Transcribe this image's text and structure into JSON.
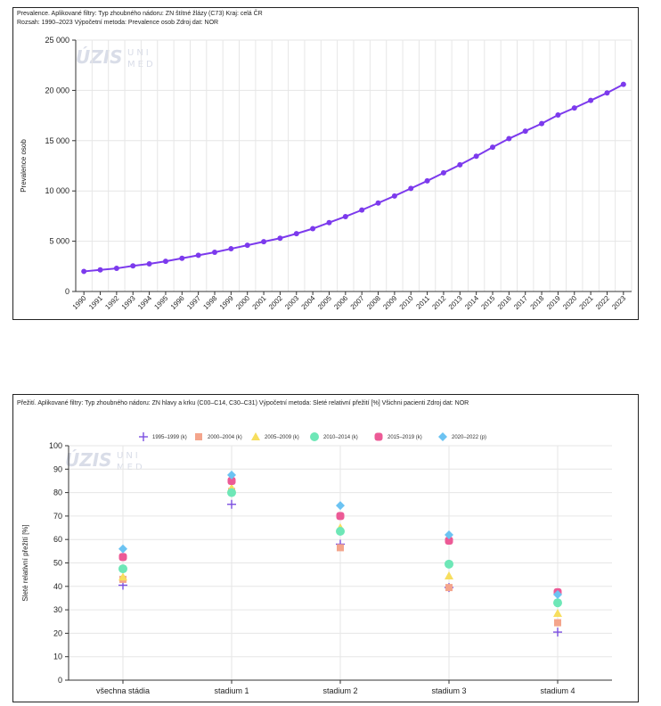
{
  "charts": [
    {
      "caption_line1": "Prevalence. Aplikované filtry: Typ zhoubného nádoru: ZN štítné žlázy (C73) Kraj: celá ČR",
      "caption_line2": "Rozsah: 1990–2023 Výpočetní metoda: Prevalence osob Zdroj dat: NOR",
      "watermark": [
        "ÚZIS",
        "UNI",
        "MED"
      ]
    },
    {
      "caption_line1": "Přežití. Aplikované filtry: Typ zhoubného nádoru: ZN hlavy a krku (C00–C14, C30–C31) Výpočetní metoda: Sleté relativní přežití [%] Všichni pacienti Zdroj dat: NOR",
      "watermark": [
        "ÚZIS",
        "UNI",
        "MED"
      ]
    }
  ],
  "chart_data": [
    {
      "type": "line",
      "ylabel": "Prevalence osob",
      "xlabel": "",
      "ylim": [
        0,
        25000
      ],
      "yticks": [
        0,
        5000,
        10000,
        15000,
        20000,
        25000
      ],
      "ytick_labels": [
        "0",
        "5 000",
        "10 000",
        "15 000",
        "20 000",
        "25 000"
      ],
      "grid": true,
      "color": "#7c3aed",
      "x": [
        "1990",
        "1991",
        "1992",
        "1993",
        "1994",
        "1995",
        "1996",
        "1997",
        "1998",
        "1999",
        "2000",
        "2001",
        "2002",
        "2003",
        "2004",
        "2005",
        "2006",
        "2007",
        "2008",
        "2009",
        "2010",
        "2011",
        "2012",
        "2013",
        "2014",
        "2015",
        "2016",
        "2017",
        "2018",
        "2019",
        "2020",
        "2021",
        "2022",
        "2023"
      ],
      "values": [
        2000,
        2150,
        2300,
        2550,
        2750,
        3000,
        3300,
        3600,
        3900,
        4250,
        4600,
        4950,
        5300,
        5750,
        6250,
        6850,
        7450,
        8100,
        8800,
        9500,
        10250,
        11000,
        11800,
        12600,
        13450,
        14350,
        15200,
        15950,
        16700,
        17550,
        18250,
        19000,
        19750,
        20600
      ]
    },
    {
      "type": "scatter",
      "ylabel": "Sleté relativní přežití [%]",
      "xlabel": "",
      "ylim": [
        0,
        100
      ],
      "yticks": [
        0,
        10,
        20,
        30,
        40,
        50,
        60,
        70,
        80,
        90,
        100
      ],
      "grid": true,
      "legend_position": "top",
      "categories": [
        "všechna stádia",
        "stadium 1",
        "stadium 2",
        "stadium 3",
        "stadium 4"
      ],
      "series": [
        {
          "name": "1995–1999 (k)",
          "marker": "plus",
          "color": "#7b4fe0",
          "values": [
            40.5,
            75,
            58,
            39.5,
            20.5
          ]
        },
        {
          "name": "2000–2004 (k)",
          "marker": "square",
          "color": "#f4a58c",
          "values": [
            43,
            80.5,
            56.5,
            39.5,
            24.5
          ]
        },
        {
          "name": "2005–2009 (k)",
          "marker": "triangle",
          "color": "#f7de5e",
          "values": [
            44,
            82,
            65,
            44.5,
            28.5
          ]
        },
        {
          "name": "2010–2014 (k)",
          "marker": "circle",
          "color": "#6ee7b7",
          "values": [
            47.5,
            80,
            63.5,
            49.5,
            33
          ]
        },
        {
          "name": "2015–2019 (k)",
          "marker": "roundsquare",
          "color": "#ec5a96",
          "values": [
            52.5,
            85,
            70,
            59.5,
            37.5
          ]
        },
        {
          "name": "2020–2022 (p)",
          "marker": "diamond",
          "color": "#6cc3f2",
          "values": [
            56,
            87.5,
            74.5,
            62,
            36.5
          ]
        }
      ]
    }
  ]
}
